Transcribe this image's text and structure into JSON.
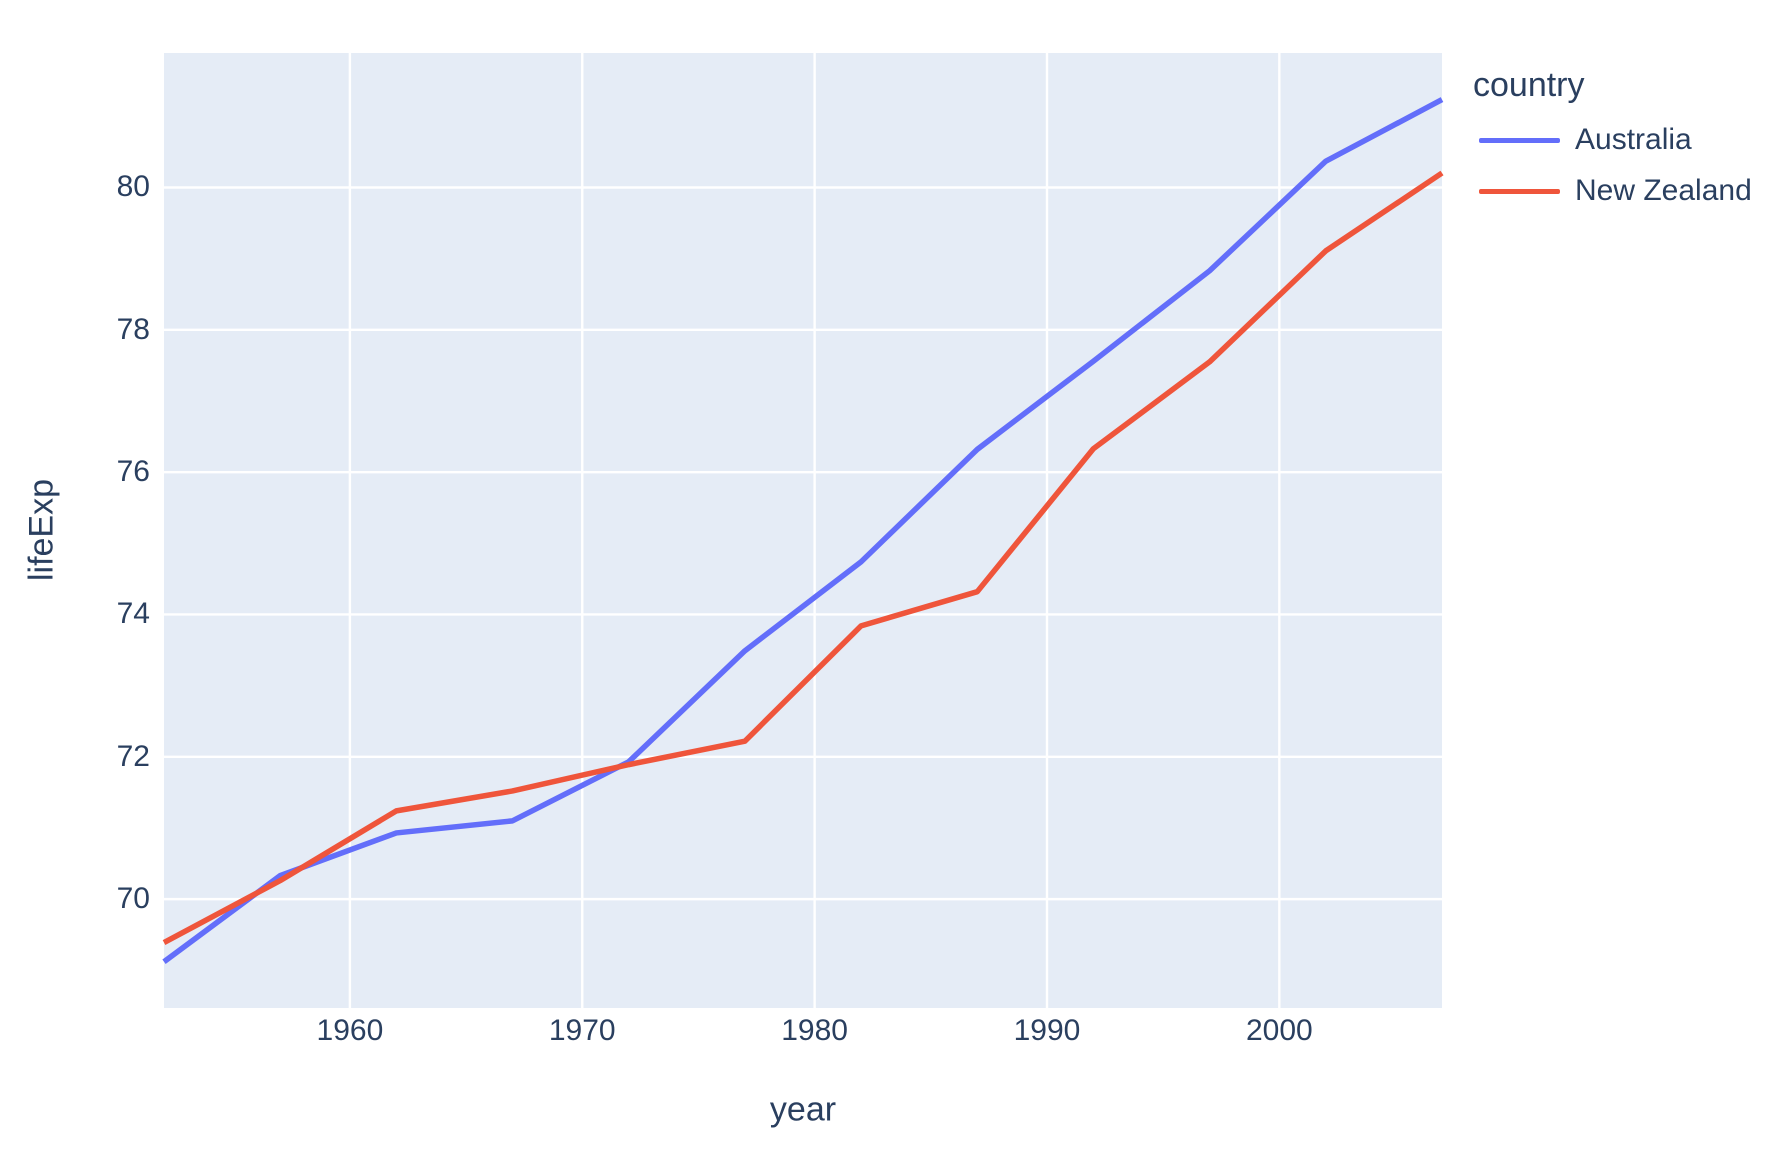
{
  "chart_data": {
    "type": "line",
    "title": "",
    "xlabel": "year",
    "ylabel": "lifeExp",
    "legend_title": "country",
    "legend_position": "outside-top-right",
    "grid": true,
    "x": [
      1952,
      1957,
      1962,
      1967,
      1972,
      1977,
      1982,
      1987,
      1992,
      1997,
      2002,
      2007
    ],
    "series": [
      {
        "name": "Australia",
        "color": "#636EFA",
        "values": [
          69.12,
          70.33,
          70.93,
          71.1,
          71.93,
          73.49,
          74.74,
          76.32,
          77.56,
          78.83,
          80.37,
          81.235
        ]
      },
      {
        "name": "New Zealand",
        "color": "#EF553B",
        "values": [
          69.39,
          70.26,
          71.24,
          71.52,
          71.89,
          72.22,
          73.84,
          74.32,
          76.33,
          77.55,
          79.11,
          80.204
        ]
      }
    ],
    "x_ticks": [
      1960,
      1970,
      1980,
      1990,
      2000
    ],
    "y_ticks": [
      70,
      72,
      74,
      76,
      78,
      80
    ],
    "xlim": [
      1952,
      2007
    ],
    "ylim": [
      68.47,
      81.89
    ],
    "colors": {
      "plot_bg": "#E5ECF6",
      "grid": "#FFFFFF",
      "text": "#2a3f5f",
      "page_bg": "#FFFFFF"
    }
  }
}
